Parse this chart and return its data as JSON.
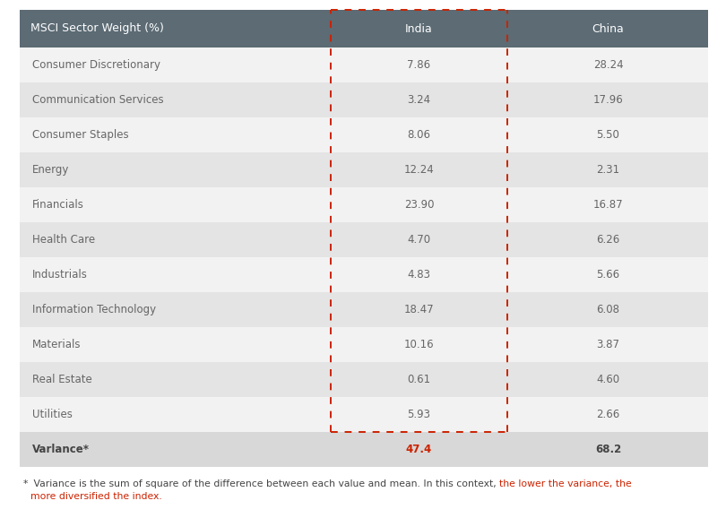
{
  "title": "MSCI Sector Weight (%)",
  "col_india": "India",
  "col_china": "China",
  "sectors": [
    "Consumer Discretionary",
    "Communication Services",
    "Consumer Staples",
    "Energy",
    "Financials",
    "Health Care",
    "Industrials",
    "Information Technology",
    "Materials",
    "Real Estate",
    "Utilities"
  ],
  "india_values": [
    "7.86",
    "3.24",
    "8.06",
    "12.24",
    "23.90",
    "4.70",
    "4.83",
    "18.47",
    "10.16",
    "0.61",
    "5.93"
  ],
  "china_values": [
    "28.24",
    "17.96",
    "5.50",
    "2.31",
    "16.87",
    "6.26",
    "5.66",
    "6.08",
    "3.87",
    "4.60",
    "2.66"
  ],
  "variance_label": "Varlance*",
  "variance_india": "47.4",
  "variance_china": "68.2",
  "header_bg": "#5c6b74",
  "header_text": "#ffffff",
  "row_light_bg": "#f2f2f2",
  "row_dark_bg": "#e4e4e4",
  "variance_row_bg": "#d8d8d8",
  "body_text_color": "#666666",
  "variance_label_color": "#444444",
  "variance_india_color": "#cc2200",
  "variance_china_color": "#444444",
  "dashed_rect_color": "#cc2200",
  "footnote_color": "#444444",
  "footnote_red_color": "#cc2200",
  "footnote_star": "*",
  "footnote_normal": " Variance is the sum of square of the difference between each value and mean. In this context, ",
  "footnote_red_1": "the lower the variance, the",
  "footnote_red_2": "more diversified the index."
}
